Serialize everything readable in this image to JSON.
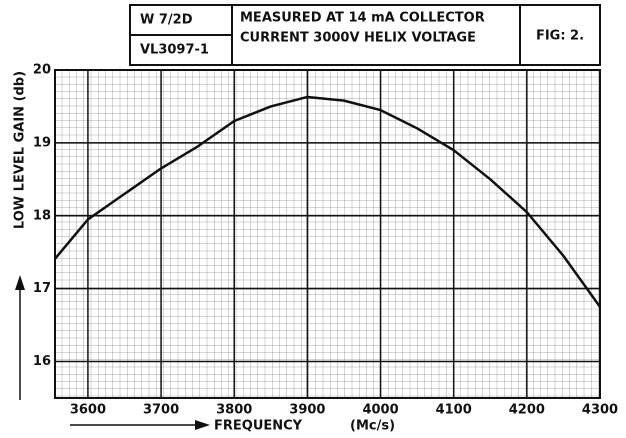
{
  "chart_data": {
    "type": "line",
    "header": {
      "code": "W 7/2D",
      "valve": "VL3097-1",
      "conditions": [
        "MEASURED AT 14 mA  COLLECTOR",
        "CURRENT  3000V  HELIX  VOLTAGE"
      ],
      "figure": "FIG: 2."
    },
    "xlabel": "FREQUENCY",
    "xunit": "(Mc/s)",
    "ylabel": "LOW LEVEL GAIN (db)",
    "x": [
      3555,
      3600,
      3650,
      3700,
      3750,
      3800,
      3850,
      3900,
      3950,
      4000,
      4050,
      4100,
      4150,
      4200,
      4250,
      4300
    ],
    "series": [
      {
        "name": "gain",
        "color": "#111111",
        "values": [
          17.41,
          17.95,
          18.3,
          18.65,
          18.95,
          19.3,
          19.5,
          19.63,
          19.58,
          19.45,
          19.2,
          18.9,
          18.5,
          18.05,
          17.45,
          16.75
        ]
      }
    ],
    "xlim": [
      3555,
      4300
    ],
    "xticks": [
      3600,
      3700,
      3800,
      3900,
      4000,
      4100,
      4200,
      4300
    ],
    "ylim": [
      15.5,
      20
    ],
    "yticks": [
      16,
      17,
      18,
      19,
      20
    ],
    "grid": true
  }
}
